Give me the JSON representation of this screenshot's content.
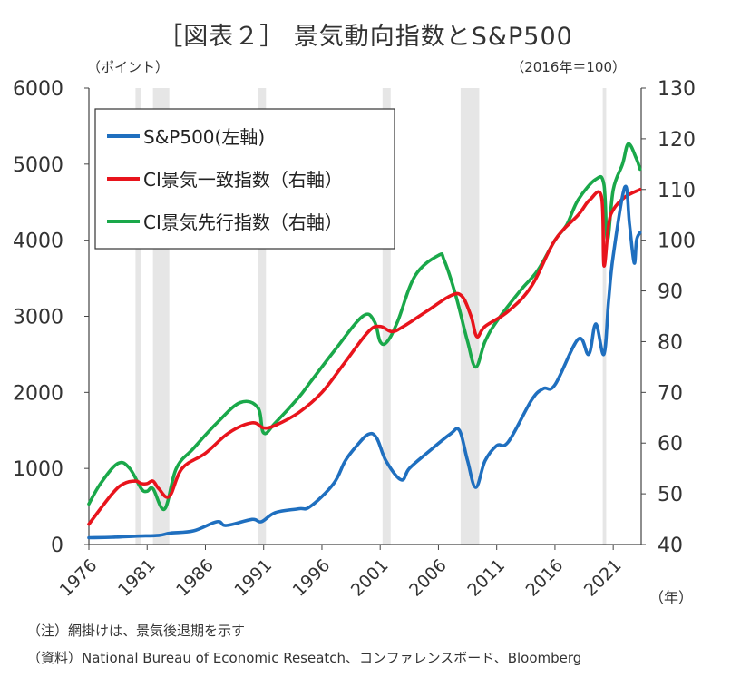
{
  "title": "［図表２］ 景気動向指数とS&P500",
  "left_unit": "（ポイント）",
  "right_unit": "（2016年＝100）",
  "x_unit": "（年）",
  "notes": [
    "（注）網掛けは、景気後退期を示す",
    "（資料）National Bureau of Economic Reseatch、コンファレンスボード、Bloomberg"
  ],
  "colors": {
    "sp500": "#1f6fbf",
    "ci_coincident": "#e8141c",
    "ci_leading": "#1aa84a",
    "recession": "#e6e6e6"
  },
  "chart_data": {
    "type": "line",
    "x_range": [
      1976,
      2023.4
    ],
    "x_ticks": [
      "1976",
      "1981",
      "1986",
      "1991",
      "1996",
      "2001",
      "2006",
      "2011",
      "2016",
      "2021"
    ],
    "y_left": {
      "range": [
        0,
        6000
      ],
      "ticks": [
        "0",
        "1000",
        "2000",
        "3000",
        "4000",
        "5000",
        "6000"
      ]
    },
    "y_right": {
      "range": [
        40,
        130
      ],
      "ticks": [
        "40",
        "50",
        "60",
        "70",
        "80",
        "90",
        "100",
        "110",
        "120",
        "130"
      ]
    },
    "recessions": [
      [
        1980.0,
        1980.5
      ],
      [
        1981.5,
        1982.9
      ],
      [
        1990.5,
        1991.2
      ],
      [
        2001.2,
        2001.9
      ],
      [
        2007.9,
        2009.5
      ],
      [
        2020.1,
        2020.4
      ]
    ],
    "legend": {
      "placement": "top-left",
      "entries": [
        "S&P500(左軸)",
        "CI景気一致指数（右軸）",
        "CI景気先行指数（右軸）"
      ]
    },
    "series": [
      {
        "name": "S&P500(左軸)",
        "axis": "left",
        "x": [
          1976,
          1978,
          1980,
          1982,
          1983,
          1985,
          1987,
          1987.8,
          1990,
          1990.8,
          1992,
          1994,
          1995,
          1997,
          1998,
          1999,
          2000,
          2000.7,
          2001.5,
          2002.8,
          2003.5,
          2005,
          2007,
          2007.8,
          2008.5,
          2009.2,
          2010,
          2011,
          2012,
          2014,
          2015,
          2016,
          2018,
          2018.9,
          2019.5,
          2020.2,
          2020.6,
          2021,
          2022,
          2022.4,
          2022.8,
          2023,
          2023.3
        ],
        "y": [
          90,
          95,
          110,
          120,
          150,
          180,
          300,
          250,
          330,
          300,
          420,
          470,
          500,
          800,
          1100,
          1300,
          1450,
          1400,
          1100,
          850,
          1000,
          1200,
          1450,
          1500,
          1100,
          750,
          1100,
          1300,
          1350,
          1900,
          2050,
          2100,
          2700,
          2500,
          2900,
          2500,
          3200,
          3800,
          4700,
          4200,
          3700,
          4000,
          4100
        ]
      },
      {
        "name": "CI景気一致指数（右軸）",
        "axis": "right",
        "x": [
          1976,
          1978,
          1979,
          1980,
          1980.5,
          1981,
          1981.5,
          1982,
          1982.9,
          1984,
          1986,
          1988,
          1990,
          1991,
          1992,
          1994,
          1996,
          1998,
          2000,
          2001,
          2002,
          2003,
          2005,
          2007,
          2008,
          2008.8,
          2009.3,
          2010,
          2012,
          2014,
          2016,
          2018,
          2019,
          2020,
          2020.2,
          2020.6,
          2021,
          2022,
          2023.3
        ],
        "y": [
          44,
          50,
          52,
          52.5,
          52,
          52,
          52.5,
          51,
          49.5,
          55,
          58,
          62,
          64,
          63,
          63.5,
          66,
          70,
          76,
          82,
          83,
          82,
          83,
          86,
          89,
          89,
          85,
          81,
          83,
          86,
          91,
          100,
          105,
          108,
          108.5,
          95,
          103,
          106,
          108.5,
          110
        ]
      },
      {
        "name": "CI景気先行指数（右軸）",
        "axis": "right",
        "x": [
          1976,
          1977,
          1978.5,
          1979.5,
          1980.5,
          1981,
          1981.5,
          1982.5,
          1983.5,
          1985,
          1987,
          1989,
          1990.5,
          1991,
          1992,
          1994,
          1995,
          1997,
          1999.5,
          2000.5,
          2001,
          2001.6,
          2002.5,
          2004,
          2006,
          2006.5,
          2007.5,
          2008.5,
          2009.2,
          2010,
          2011,
          2013,
          2014.5,
          2016,
          2017,
          2018,
          2019.5,
          2020.2,
          2020.5,
          2021,
          2021.8,
          2022.3,
          2023,
          2023.3
        ],
        "y": [
          48,
          52,
          56,
          55,
          51,
          50.5,
          51,
          47,
          55,
          59,
          64,
          68,
          67,
          62,
          64,
          69,
          72,
          78,
          85,
          84,
          80,
          80,
          84,
          93,
          97,
          96,
          89,
          80,
          75,
          80,
          84,
          90,
          94,
          100,
          103,
          108,
          112,
          111,
          100,
          110,
          115,
          119,
          116,
          114
        ]
      }
    ]
  }
}
